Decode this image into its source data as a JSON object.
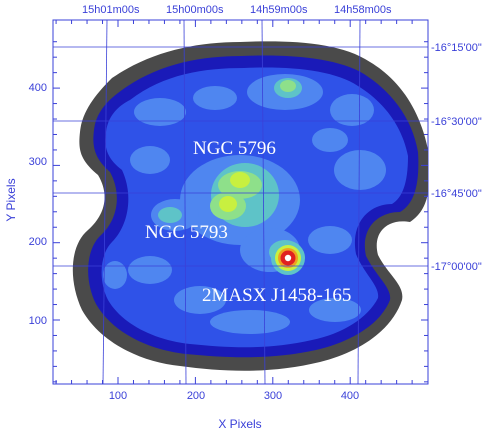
{
  "chart_data": {
    "type": "heatmap",
    "xlabel": "X Pixels",
    "ylabel": "Y Pixels",
    "xlim": [
      12,
      490
    ],
    "ylim": [
      15,
      470
    ],
    "x_ticks": [
      "100",
      "200",
      "300",
      "400"
    ],
    "y_ticks": [
      "100",
      "200",
      "300",
      "400"
    ],
    "ra_ticks": [
      "15h01m00s",
      "15h00m00s",
      "14h59m00s",
      "14h58m00s"
    ],
    "dec_ticks": [
      "-16°15'00\"",
      "-16°30'00\"",
      "-16°45'00\"",
      "-17°00'00\""
    ],
    "annotations": [
      {
        "text": "NGC 5796",
        "x": 258,
        "y": 299
      },
      {
        "text": "NGC 5793",
        "x": 225,
        "y": 211
      },
      {
        "text": "2MASX J1458-165",
        "x": 338,
        "y": 128
      }
    ],
    "bright_sources": [
      {
        "x": 320,
        "y": 178,
        "level": "peak"
      },
      {
        "x": 258,
        "y": 292,
        "level": "high"
      },
      {
        "x": 245,
        "y": 258,
        "level": "high"
      }
    ],
    "colors": {
      "background": "#ffffff",
      "outer_halo": "#4a4a4a",
      "edge": "#1a1ab8",
      "low": "#2f52e8",
      "mid_low": "#4f86f0",
      "mid": "#5ec3c8",
      "mid_high": "#8ee08a",
      "high": "#c8f040",
      "peak_ring": "#f0a020",
      "peak_core": "#e02020",
      "peak_center": "#ffffff",
      "grid": "#3a40d8",
      "labels": "#ffffff"
    }
  }
}
